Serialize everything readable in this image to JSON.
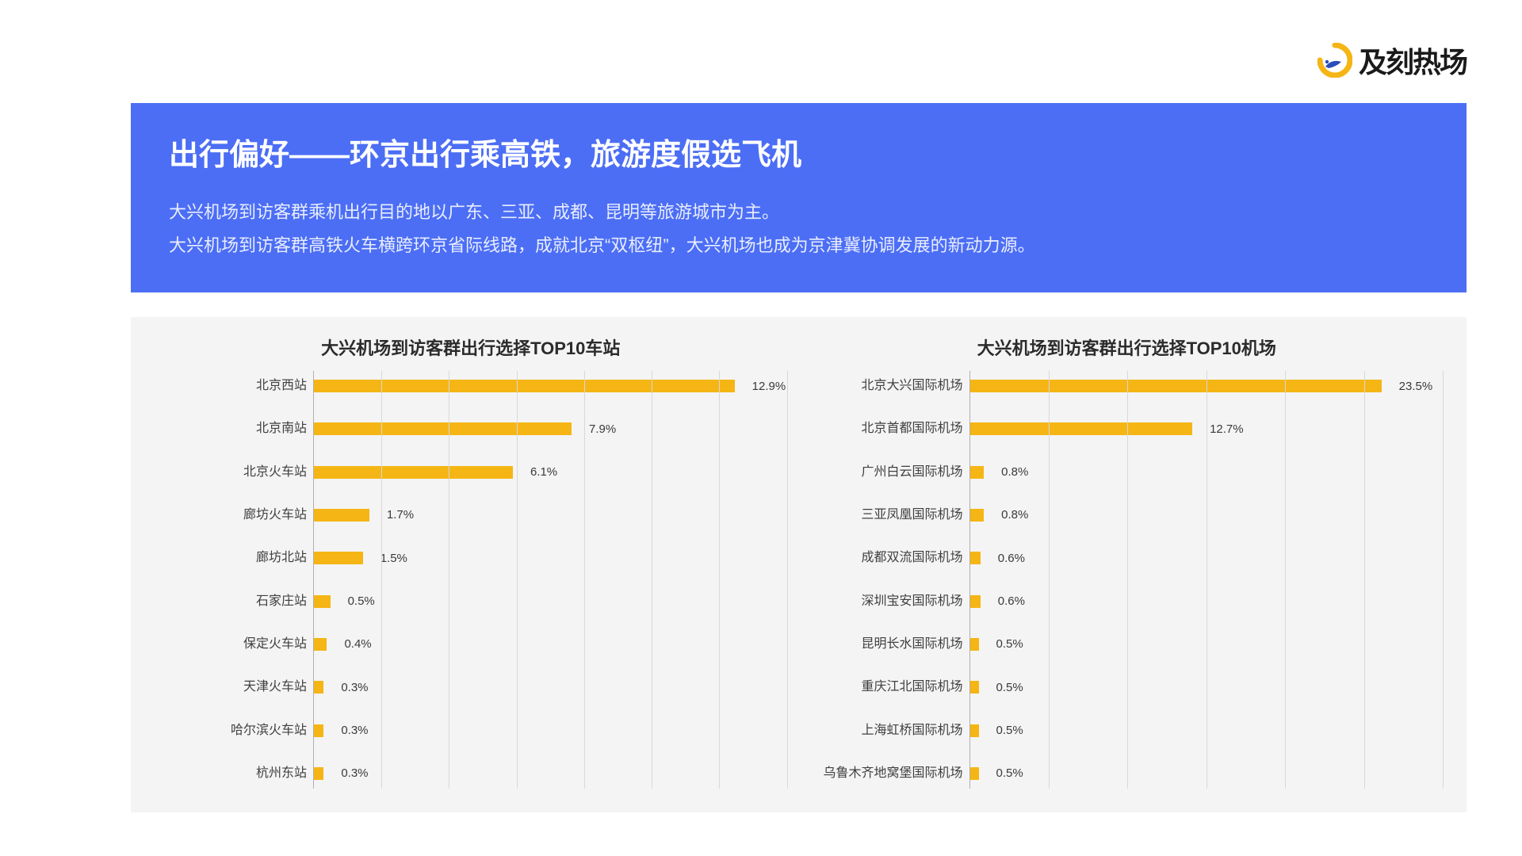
{
  "brand": {
    "name": "及刻热场"
  },
  "header": {
    "title": "出行偏好——环京出行乘高铁，旅游度假选飞机",
    "line1": "大兴机场到访客群乘机出行目的地以广东、三亚、成都、昆明等旅游城市为主。",
    "line2": "大兴机场到访客群高铁火车横跨环京省际线路，成就北京“双枢纽”，大兴机场也成为京津冀协调发展的新动力源。"
  },
  "colors": {
    "header_bg": "#4c6ef5",
    "header_text": "#ffffff",
    "chart_bg": "#f4f4f4",
    "bar_color": "#f5b514",
    "grid_color": "#d8d8d8",
    "axis_color": "#b0b0b0",
    "text_color": "#3a3a3a"
  },
  "chart_left": {
    "type": "horizontal_bar",
    "title": "大兴机场到访客群出行选择TOP10车站",
    "max_value": 14.5,
    "grid_count": 7,
    "bars": [
      {
        "label": "北京西站",
        "value": 12.9,
        "value_label": "12.9%"
      },
      {
        "label": "北京南站",
        "value": 7.9,
        "value_label": "7.9%"
      },
      {
        "label": "北京火车站",
        "value": 6.1,
        "value_label": "6.1%"
      },
      {
        "label": "廊坊火车站",
        "value": 1.7,
        "value_label": "1.7%"
      },
      {
        "label": "廊坊北站",
        "value": 1.5,
        "value_label": "1.5%"
      },
      {
        "label": "石家庄站",
        "value": 0.5,
        "value_label": "0.5%"
      },
      {
        "label": "保定火车站",
        "value": 0.4,
        "value_label": "0.4%"
      },
      {
        "label": "天津火车站",
        "value": 0.3,
        "value_label": "0.3%"
      },
      {
        "label": "哈尔滨火车站",
        "value": 0.3,
        "value_label": "0.3%"
      },
      {
        "label": "杭州东站",
        "value": 0.3,
        "value_label": "0.3%"
      }
    ]
  },
  "chart_right": {
    "type": "horizontal_bar",
    "title": "大兴机场到访客群出行选择TOP10机场",
    "max_value": 27.0,
    "grid_count": 6,
    "bars": [
      {
        "label": "北京大兴国际机场",
        "value": 23.5,
        "value_label": "23.5%"
      },
      {
        "label": "北京首都国际机场",
        "value": 12.7,
        "value_label": "12.7%"
      },
      {
        "label": "广州白云国际机场",
        "value": 0.8,
        "value_label": "0.8%"
      },
      {
        "label": "三亚凤凰国际机场",
        "value": 0.8,
        "value_label": "0.8%"
      },
      {
        "label": "成都双流国际机场",
        "value": 0.6,
        "value_label": "0.6%"
      },
      {
        "label": "深圳宝安国际机场",
        "value": 0.6,
        "value_label": "0.6%"
      },
      {
        "label": "昆明长水国际机场",
        "value": 0.5,
        "value_label": "0.5%"
      },
      {
        "label": "重庆江北国际机场",
        "value": 0.5,
        "value_label": "0.5%"
      },
      {
        "label": "上海虹桥国际机场",
        "value": 0.5,
        "value_label": "0.5%"
      },
      {
        "label": "乌鲁木齐地窝堡国际机场",
        "value": 0.5,
        "value_label": "0.5%"
      }
    ]
  }
}
